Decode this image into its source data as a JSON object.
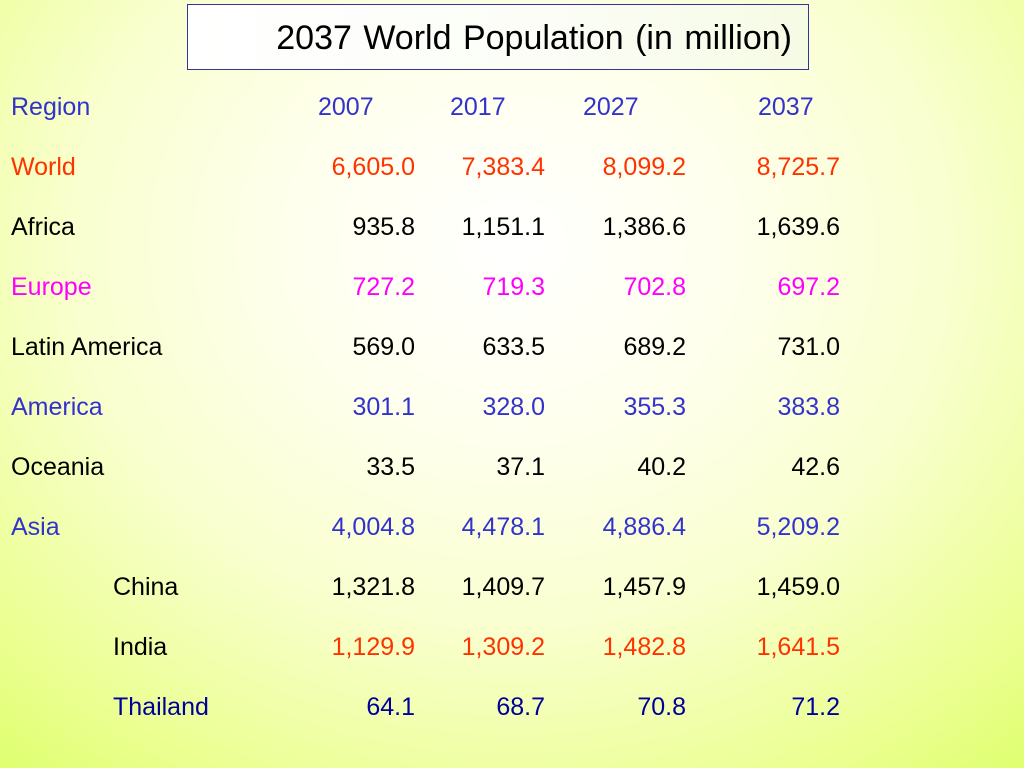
{
  "title": "2037 World Population (in million)",
  "table": {
    "headers": [
      "Region",
      "2007",
      "2017",
      "2027",
      "2037"
    ],
    "header_color": "#3333cc",
    "rows": [
      {
        "region": "World",
        "values": [
          "6,605.0",
          "7,383.4",
          "8,099.2",
          "8,725.7"
        ],
        "color": "#ff3300",
        "indent": false
      },
      {
        "region": "Africa",
        "values": [
          "935.8",
          "1,151.1",
          "1,386.6",
          "1,639.6"
        ],
        "color": "#000000",
        "indent": false
      },
      {
        "region": "Europe",
        "values": [
          "727.2",
          "719.3",
          "702.8",
          "697.2"
        ],
        "color": "#ff00ff",
        "indent": false
      },
      {
        "region": "Latin America",
        "values": [
          "569.0",
          "633.5",
          "689.2",
          "731.0"
        ],
        "color": "#000000",
        "indent": false
      },
      {
        "region": "America",
        "values": [
          "301.1",
          "328.0",
          "355.3",
          "383.8"
        ],
        "color": "#3333cc",
        "indent": false
      },
      {
        "region": "Oceania",
        "values": [
          "33.5",
          "37.1",
          "40.2",
          "42.6"
        ],
        "color": "#000000",
        "indent": false
      },
      {
        "region": "Asia",
        "values": [
          "4,004.8",
          "4,478.1",
          "4,886.4",
          "5,209.2"
        ],
        "color": "#3333cc",
        "indent": false
      },
      {
        "region": "China",
        "values": [
          "1,321.8",
          "1,409.7",
          "1,457.9",
          "1,459.0"
        ],
        "color": "#000000",
        "indent": true
      },
      {
        "region": "India",
        "values": [
          "1,129.9",
          "1,309.2",
          "1,482.8",
          "1,641.5"
        ],
        "color": "#ff3300",
        "indent": true,
        "label_color": "#000000"
      },
      {
        "region": "Thailand",
        "values": [
          "64.1",
          "68.7",
          "70.8",
          "71.2"
        ],
        "color": "#000099",
        "indent": true
      }
    ]
  }
}
